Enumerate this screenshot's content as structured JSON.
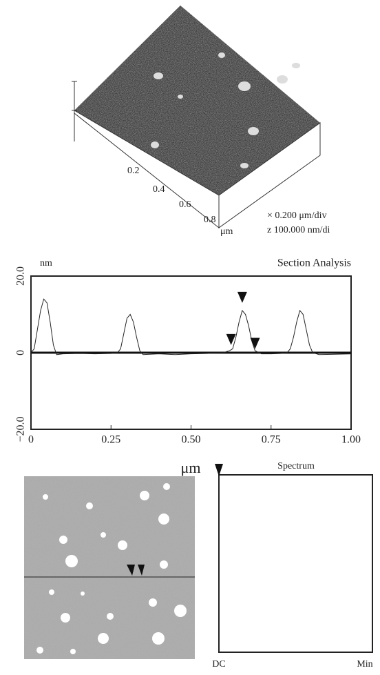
{
  "surface_plot": {
    "axis_ticks": [
      "0.2",
      "0.4",
      "0.6",
      "0.8"
    ],
    "axis_unit": "μm",
    "scale_x": "× 0.200 μm/div",
    "scale_z": "z 100.000 nm/di"
  },
  "chart_data": {
    "type": "line",
    "title": "Section Analysis",
    "y_label": "nm",
    "x_label": "μm",
    "x": [
      0,
      0.01,
      0.02,
      0.03,
      0.04,
      0.05,
      0.06,
      0.07,
      0.08,
      0.1,
      0.15,
      0.2,
      0.25,
      0.27,
      0.28,
      0.29,
      0.3,
      0.31,
      0.32,
      0.33,
      0.34,
      0.35,
      0.4,
      0.45,
      0.5,
      0.55,
      0.6,
      0.62,
      0.63,
      0.64,
      0.65,
      0.66,
      0.67,
      0.68,
      0.69,
      0.7,
      0.72,
      0.75,
      0.78,
      0.8,
      0.81,
      0.82,
      0.83,
      0.84,
      0.85,
      0.86,
      0.87,
      0.88,
      0.9,
      0.95,
      1.0
    ],
    "series": [
      {
        "color": "#222222",
        "values": [
          0,
          1,
          6,
          11,
          14,
          13,
          8,
          2,
          -0.5,
          -0.3,
          -0.2,
          -0.3,
          -0.2,
          0,
          1,
          5,
          9,
          10,
          8,
          4,
          0.5,
          -0.5,
          -0.3,
          -0.5,
          -0.3,
          -0.2,
          0,
          0.5,
          1,
          4,
          8,
          11,
          10,
          7,
          3,
          0.5,
          -0.3,
          -0.3,
          -0.2,
          0,
          1,
          4,
          8,
          11,
          10,
          6,
          2,
          0,
          -0.5,
          -0.4,
          -0.3
        ]
      }
    ],
    "cursors": {
      "x": [
        0.625,
        0.66,
        0.7
      ],
      "y": [
        2,
        13,
        1
      ]
    },
    "xlim": [
      0,
      1
    ],
    "ylim": [
      -20,
      20
    ],
    "xticks": [
      0,
      {
        "value": 0.25,
        "label": "0.25"
      },
      {
        "value": 0.5,
        "label": "0.50"
      },
      {
        "value": 0.75,
        "label": "0.75"
      },
      {
        "value": 1,
        "label": "1.00"
      }
    ],
    "yticks": [
      {
        "value": -20,
        "label": "−20.0"
      },
      0,
      {
        "value": 20,
        "label": "20.0"
      }
    ]
  },
  "spectrum": {
    "title": "Spectrum",
    "left_label": "DC",
    "right_label": "Min"
  }
}
